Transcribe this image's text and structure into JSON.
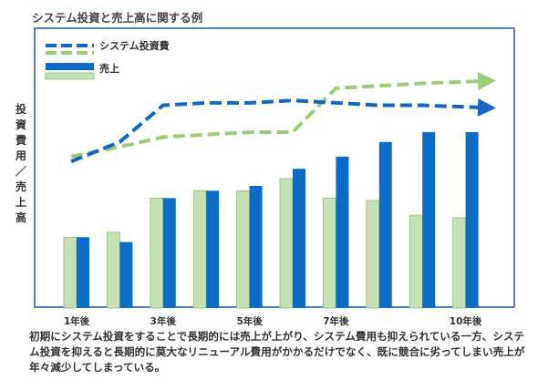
{
  "chart_data": {
    "type": "bar",
    "title": "システム投資と売上高に関する例",
    "ylabel": "投資費用／売上高",
    "categories": [
      "1",
      "2",
      "3",
      "4",
      "5",
      "6",
      "7",
      "8",
      "9",
      "10"
    ],
    "x_tick_labels": [
      "1年後",
      "",
      "3年後",
      "",
      "5年後",
      "",
      "7年後",
      "",
      "",
      "10年後"
    ],
    "ylim": [
      0,
      100
    ],
    "series": [
      {
        "name": "売上",
        "type": "bar",
        "color": "#0a6cc4",
        "values": [
          29,
          27,
          45,
          48,
          50,
          57,
          62,
          68,
          72,
          72
        ]
      },
      {
        "name": "",
        "type": "bar",
        "color": "#c5e0b3",
        "values": [
          29,
          31,
          45,
          48,
          48,
          53,
          45,
          44,
          38,
          37
        ]
      },
      {
        "name": "システム投資費",
        "type": "line",
        "color": "#1566c2",
        "dashed": true,
        "values": [
          60,
          68,
          83,
          84,
          84,
          85,
          84,
          83,
          83,
          82
        ]
      },
      {
        "name": "",
        "type": "line",
        "color": "#9ccc78",
        "dashed": true,
        "values": [
          62,
          66,
          70,
          71,
          72,
          72,
          90,
          91,
          92,
          93
        ]
      }
    ],
    "legend_position": "top-left",
    "grid": false
  },
  "caption": "初期にシステム投資をすることで長期的には売上が上がり、システム費用も抑えられている一方、システム投資を抑えると長期的に莫大なリニューアル費用がかかるだけでなく、既に競合に劣ってしまい売上が年々減少してしまっている。"
}
